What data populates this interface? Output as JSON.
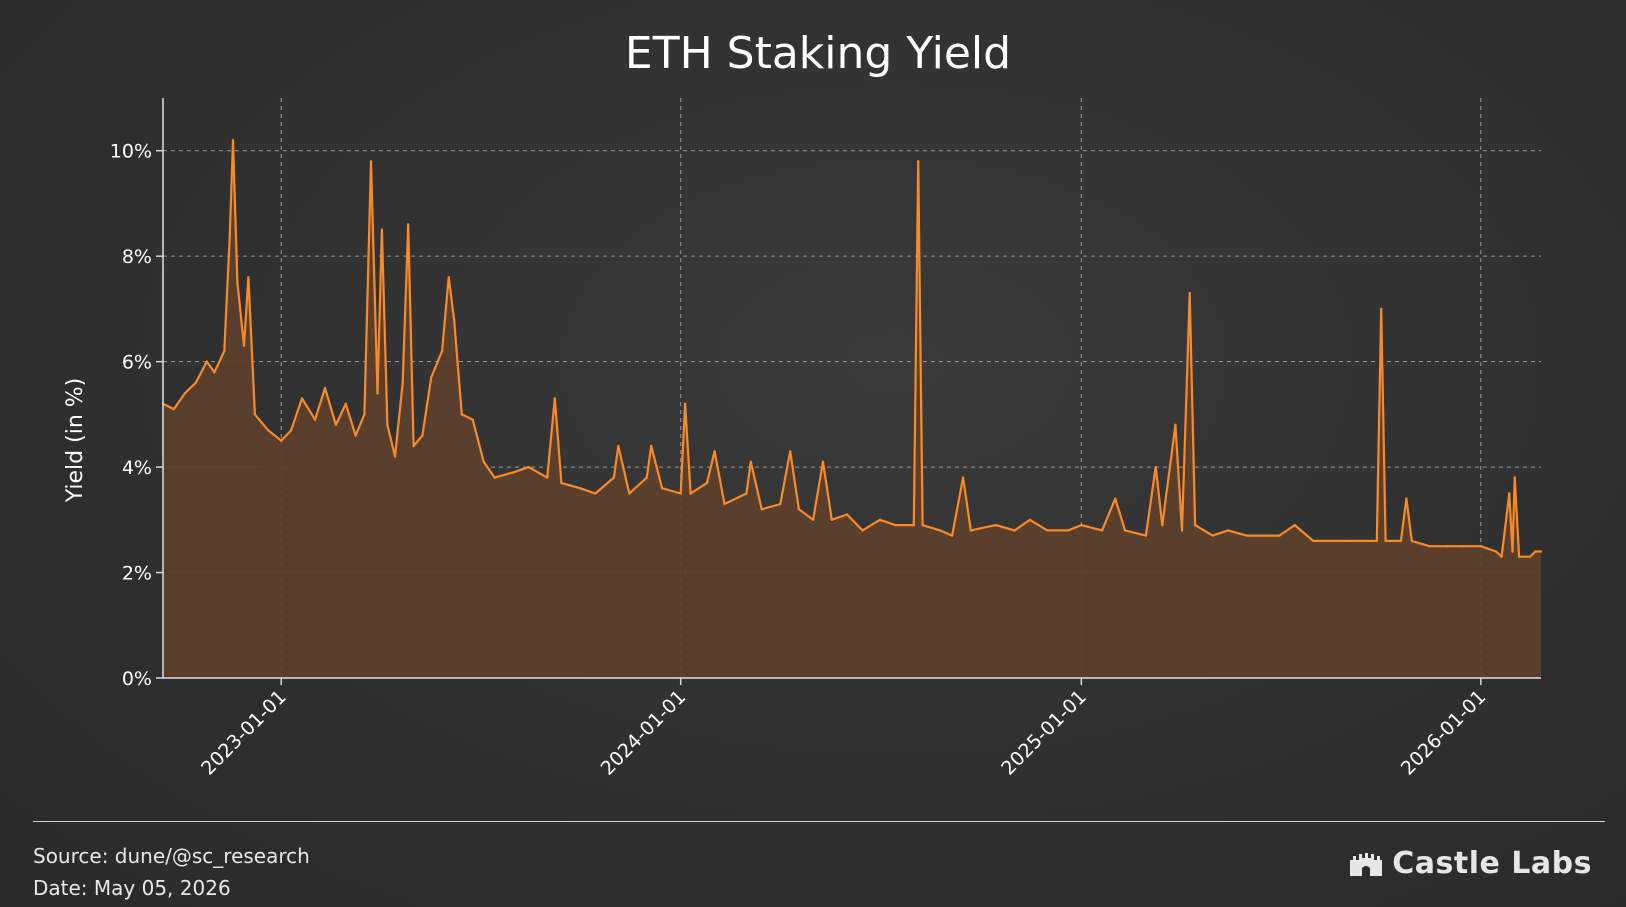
{
  "chart_data": {
    "type": "area",
    "title": "ETH Staking Yield",
    "ylabel": "Yield (in %)",
    "xlabel": "",
    "ylim": [
      0,
      11
    ],
    "xlim": [
      "2022-09-15",
      "2026-02-25"
    ],
    "y_ticks": [
      0,
      2,
      4,
      6,
      8,
      10
    ],
    "y_tick_labels": [
      "0%",
      "2%",
      "4%",
      "6%",
      "8%",
      "10%"
    ],
    "x_ticks": [
      "2023-01-01",
      "2024-01-01",
      "2025-01-01",
      "2026-01-01"
    ],
    "x_tick_labels": [
      "2023-01-01",
      "2024-01-01",
      "2025-01-01",
      "2026-01-01"
    ],
    "grid": true,
    "line_color": "#f78a2a",
    "fill_color": "#5e402c",
    "series": [
      {
        "values": [
          [
            "2022-09-15",
            5.2
          ],
          [
            "2022-09-25",
            5.1
          ],
          [
            "2022-10-05",
            5.4
          ],
          [
            "2022-10-15",
            5.6
          ],
          [
            "2022-10-25",
            6.0
          ],
          [
            "2022-11-01",
            5.8
          ],
          [
            "2022-11-10",
            6.2
          ],
          [
            "2022-11-15",
            8.4
          ],
          [
            "2022-11-18",
            10.2
          ],
          [
            "2022-11-22",
            7.5
          ],
          [
            "2022-11-28",
            6.3
          ],
          [
            "2022-12-02",
            7.6
          ],
          [
            "2022-12-08",
            5.0
          ],
          [
            "2022-12-20",
            4.7
          ],
          [
            "2023-01-01",
            4.5
          ],
          [
            "2023-01-10",
            4.7
          ],
          [
            "2023-01-20",
            5.3
          ],
          [
            "2023-02-01",
            4.9
          ],
          [
            "2023-02-10",
            5.5
          ],
          [
            "2023-02-20",
            4.8
          ],
          [
            "2023-03-01",
            5.2
          ],
          [
            "2023-03-10",
            4.6
          ],
          [
            "2023-03-18",
            5.0
          ],
          [
            "2023-03-24",
            9.8
          ],
          [
            "2023-03-30",
            5.4
          ],
          [
            "2023-04-03",
            8.5
          ],
          [
            "2023-04-08",
            4.8
          ],
          [
            "2023-04-15",
            4.2
          ],
          [
            "2023-04-22",
            5.6
          ],
          [
            "2023-04-27",
            8.6
          ],
          [
            "2023-05-02",
            4.4
          ],
          [
            "2023-05-10",
            4.6
          ],
          [
            "2023-05-18",
            5.7
          ],
          [
            "2023-05-28",
            6.2
          ],
          [
            "2023-06-03",
            7.6
          ],
          [
            "2023-06-08",
            6.8
          ],
          [
            "2023-06-15",
            5.0
          ],
          [
            "2023-06-25",
            4.9
          ],
          [
            "2023-07-05",
            4.1
          ],
          [
            "2023-07-15",
            3.8
          ],
          [
            "2023-08-01",
            3.9
          ],
          [
            "2023-08-15",
            4.0
          ],
          [
            "2023-09-01",
            3.8
          ],
          [
            "2023-09-08",
            5.3
          ],
          [
            "2023-09-14",
            3.7
          ],
          [
            "2023-10-01",
            3.6
          ],
          [
            "2023-10-15",
            3.5
          ],
          [
            "2023-11-01",
            3.8
          ],
          [
            "2023-11-05",
            4.4
          ],
          [
            "2023-11-15",
            3.5
          ],
          [
            "2023-12-01",
            3.8
          ],
          [
            "2023-12-05",
            4.4
          ],
          [
            "2023-12-15",
            3.6
          ],
          [
            "2024-01-01",
            3.5
          ],
          [
            "2024-01-05",
            5.2
          ],
          [
            "2024-01-10",
            3.5
          ],
          [
            "2024-01-25",
            3.7
          ],
          [
            "2024-02-01",
            4.3
          ],
          [
            "2024-02-10",
            3.3
          ],
          [
            "2024-03-01",
            3.5
          ],
          [
            "2024-03-05",
            4.1
          ],
          [
            "2024-03-15",
            3.2
          ],
          [
            "2024-04-01",
            3.3
          ],
          [
            "2024-04-10",
            4.3
          ],
          [
            "2024-04-18",
            3.2
          ],
          [
            "2024-05-01",
            3.0
          ],
          [
            "2024-05-10",
            4.1
          ],
          [
            "2024-05-18",
            3.0
          ],
          [
            "2024-06-01",
            3.1
          ],
          [
            "2024-06-15",
            2.8
          ],
          [
            "2024-07-01",
            3.0
          ],
          [
            "2024-07-15",
            2.9
          ],
          [
            "2024-08-01",
            2.9
          ],
          [
            "2024-08-05",
            9.8
          ],
          [
            "2024-08-09",
            2.9
          ],
          [
            "2024-08-25",
            2.8
          ],
          [
            "2024-09-05",
            2.7
          ],
          [
            "2024-09-15",
            3.8
          ],
          [
            "2024-09-22",
            2.8
          ],
          [
            "2024-10-15",
            2.9
          ],
          [
            "2024-11-01",
            2.8
          ],
          [
            "2024-11-15",
            3.0
          ],
          [
            "2024-12-01",
            2.8
          ],
          [
            "2024-12-20",
            2.8
          ],
          [
            "2025-01-01",
            2.9
          ],
          [
            "2025-01-20",
            2.8
          ],
          [
            "2025-02-01",
            3.4
          ],
          [
            "2025-02-10",
            2.8
          ],
          [
            "2025-03-01",
            2.7
          ],
          [
            "2025-03-10",
            4.0
          ],
          [
            "2025-03-16",
            2.9
          ],
          [
            "2025-03-28",
            4.8
          ],
          [
            "2025-04-03",
            2.8
          ],
          [
            "2025-04-10",
            7.3
          ],
          [
            "2025-04-15",
            2.9
          ],
          [
            "2025-05-01",
            2.7
          ],
          [
            "2025-05-15",
            2.8
          ],
          [
            "2025-06-01",
            2.7
          ],
          [
            "2025-07-01",
            2.7
          ],
          [
            "2025-07-15",
            2.9
          ],
          [
            "2025-08-01",
            2.6
          ],
          [
            "2025-09-01",
            2.6
          ],
          [
            "2025-09-28",
            2.6
          ],
          [
            "2025-10-02",
            7.0
          ],
          [
            "2025-10-06",
            2.6
          ],
          [
            "2025-10-20",
            2.6
          ],
          [
            "2025-10-25",
            3.4
          ],
          [
            "2025-10-30",
            2.6
          ],
          [
            "2025-11-15",
            2.5
          ],
          [
            "2025-12-01",
            2.5
          ],
          [
            "2025-12-15",
            2.5
          ],
          [
            "2026-01-01",
            2.5
          ],
          [
            "2026-01-15",
            2.4
          ],
          [
            "2026-01-20",
            2.3
          ],
          [
            "2026-01-27",
            3.5
          ],
          [
            "2026-01-30",
            2.4
          ],
          [
            "2026-02-01",
            3.8
          ],
          [
            "2026-02-05",
            2.3
          ],
          [
            "2026-02-15",
            2.3
          ],
          [
            "2026-02-20",
            2.4
          ],
          [
            "2026-02-25",
            2.4
          ]
        ]
      }
    ]
  },
  "footer": {
    "source": "Source: dune/@sc_research",
    "date": "Date: May 05, 2026",
    "brand_name": "Castle Labs",
    "brand_icon": "castle-icon"
  }
}
